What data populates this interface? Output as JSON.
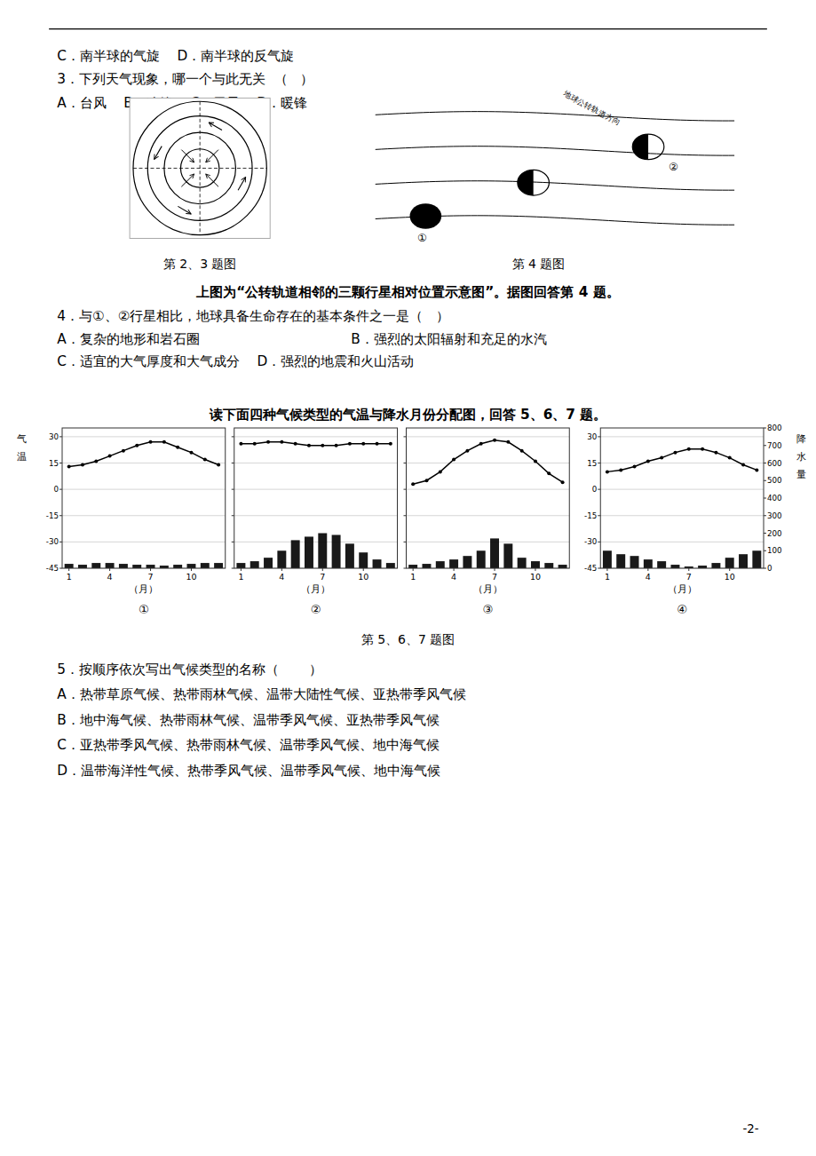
{
  "chart_data": [
    {
      "type": "bar",
      "title": "①",
      "x": [
        1,
        2,
        3,
        4,
        5,
        6,
        7,
        8,
        9,
        10,
        11,
        12
      ],
      "xlim": [
        0.5,
        12.5
      ],
      "xticks": [
        1,
        4,
        7,
        10
      ],
      "xlabel": "（月）",
      "ylim": [
        -45,
        35
      ],
      "yticks": [
        -45,
        -30,
        -15,
        0,
        15,
        30
      ],
      "ylabel": "气温",
      "y2lim": [
        0,
        800
      ],
      "grid": true,
      "series": [
        {
          "type": "bar",
          "axis": "y2",
          "color": "#000000",
          "values": [
            25,
            20,
            30,
            30,
            25,
            20,
            20,
            15,
            20,
            25,
            30,
            30
          ]
        },
        {
          "type": "line",
          "color": "#000000",
          "marker": "circle",
          "values": [
            13,
            14,
            16,
            19,
            22,
            25,
            27,
            27,
            24,
            21,
            17,
            14
          ]
        }
      ]
    },
    {
      "type": "bar",
      "title": "②",
      "x": [
        1,
        2,
        3,
        4,
        5,
        6,
        7,
        8,
        9,
        10,
        11,
        12
      ],
      "xlim": [
        0.5,
        12.5
      ],
      "xticks": [
        1,
        4,
        7,
        10
      ],
      "xlabel": "（月）",
      "ylim": [
        -45,
        35
      ],
      "yticks": [
        -45,
        -30,
        -15,
        0,
        15,
        30
      ],
      "y2lim": [
        0,
        800
      ],
      "grid": true,
      "tick_labels": "x",
      "series": [
        {
          "type": "bar",
          "axis": "y2",
          "color": "#000000",
          "values": [
            30,
            40,
            60,
            100,
            160,
            180,
            200,
            190,
            140,
            90,
            50,
            30
          ]
        },
        {
          "type": "line",
          "color": "#000000",
          "marker": "circle",
          "values": [
            26,
            26,
            27,
            27,
            26,
            25,
            25,
            25,
            26,
            26,
            26,
            26
          ]
        }
      ]
    },
    {
      "type": "bar",
      "title": "③",
      "x": [
        1,
        2,
        3,
        4,
        5,
        6,
        7,
        8,
        9,
        10,
        11,
        12
      ],
      "xlim": [
        0.5,
        12.5
      ],
      "xticks": [
        1,
        4,
        7,
        10
      ],
      "xlabel": "（月）",
      "ylim": [
        -45,
        35
      ],
      "yticks": [
        -45,
        -30,
        -15,
        0,
        15,
        30
      ],
      "y2lim": [
        0,
        800
      ],
      "grid": true,
      "tick_labels": "x",
      "series": [
        {
          "type": "bar",
          "axis": "y2",
          "color": "#000000",
          "values": [
            20,
            25,
            40,
            50,
            70,
            100,
            170,
            140,
            60,
            40,
            30,
            20
          ]
        },
        {
          "type": "line",
          "color": "#000000",
          "marker": "circle",
          "values": [
            3,
            5,
            10,
            17,
            22,
            26,
            28,
            27,
            22,
            16,
            9,
            4
          ]
        }
      ]
    },
    {
      "type": "bar",
      "title": "④",
      "x": [
        1,
        2,
        3,
        4,
        5,
        6,
        7,
        8,
        9,
        10,
        11,
        12
      ],
      "xlim": [
        0.5,
        12.5
      ],
      "xticks": [
        1,
        4,
        7,
        10
      ],
      "xlabel": "（月）",
      "ylim": [
        -45,
        35
      ],
      "yticks": [
        -45,
        -30,
        -15,
        0,
        15,
        30
      ],
      "y2lim": [
        0,
        800
      ],
      "y2ticks": [
        0,
        100,
        200,
        300,
        400,
        500,
        600,
        700,
        800
      ],
      "y2label": "降水量",
      "grid": true,
      "series": [
        {
          "type": "bar",
          "axis": "y2",
          "color": "#000000",
          "values": [
            100,
            80,
            70,
            50,
            40,
            20,
            10,
            15,
            30,
            60,
            80,
            100
          ]
        },
        {
          "type": "line",
          "color": "#000000",
          "marker": "circle",
          "values": [
            10,
            11,
            13,
            16,
            18,
            21,
            23,
            23,
            21,
            18,
            14,
            11
          ]
        }
      ]
    }
  ],
  "text_lines": [
    "C．南半球的气旋    D．南半球的反气旋",
    "3．下列天气现象，哪一个与此无关  （   ）",
    "A．台风    B．冷锋    C．干旱    D．暖锋",
    "第 2、3 题图",
    "第 4 题图",
    "上图为“公转轨道相邻的三颗行星相对位置示意图”。据图回答第 4 题。",
    "4．与①、②行星相比，地球具备生命存在的基本条件之一是（   ）",
    "A．复杂的地形和岩石圈",
    "B．强烈的太阳辐射和充足的水汽",
    "C．适宜的大气厚度和大气成分    D．强烈的地震和火山活动",
    "读下面四种气候类型的气温与降水月份分配图，回答 5、6、7 题。",
    "第 5、6、7 题图",
    "5．按顺序依次写出气候类型的名称（       ）",
    "A．热带草原气候、热带雨林气候、温带大陆性气候、亚热带季风气候",
    "B．地中海气候、热带雨林气候、温带季风气候、亚热带季风气候",
    "C．亚热带季风气候、热带雨林气候、温带季风气候、地中海气候",
    "D．温带海洋性气候、热带季风气候、温带季风气候、地中海气候"
  ],
  "page_number": "-2-",
  "diagram_labels": [
    "①",
    "②",
    "地球公转轨道方向"
  ]
}
